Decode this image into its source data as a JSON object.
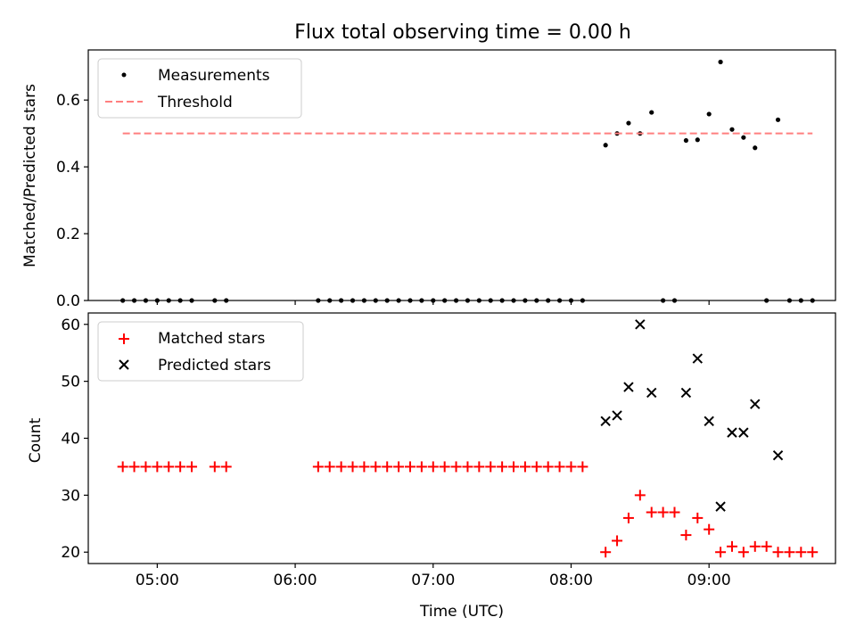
{
  "chart_data": [
    {
      "type": "scatter",
      "title": "Flux total observing time = 0.00 h",
      "xlabel": "",
      "ylabel": "Matched/Predicted stars",
      "xlim": [
        "04:30",
        "09:55"
      ],
      "ylim": [
        0.0,
        0.75
      ],
      "x_ticks": [
        "05:00",
        "06:00",
        "07:00",
        "08:00",
        "09:00"
      ],
      "y_ticks": [
        "0.0",
        "0.2",
        "0.4",
        "0.6"
      ],
      "legend_position": "top-left",
      "grid": false,
      "series": [
        {
          "name": "Measurements",
          "marker": "dot",
          "color": "#000000",
          "points": [
            [
              "04:45",
              0.0
            ],
            [
              "04:50",
              0.0
            ],
            [
              "04:55",
              0.0
            ],
            [
              "05:00",
              0.0
            ],
            [
              "05:05",
              0.0
            ],
            [
              "05:10",
              0.0
            ],
            [
              "05:15",
              0.0
            ],
            [
              "05:25",
              0.0
            ],
            [
              "05:30",
              0.0
            ],
            [
              "06:10",
              0.0
            ],
            [
              "06:15",
              0.0
            ],
            [
              "06:20",
              0.0
            ],
            [
              "06:25",
              0.0
            ],
            [
              "06:30",
              0.0
            ],
            [
              "06:35",
              0.0
            ],
            [
              "06:40",
              0.0
            ],
            [
              "06:45",
              0.0
            ],
            [
              "06:50",
              0.0
            ],
            [
              "06:55",
              0.0
            ],
            [
              "07:00",
              0.0
            ],
            [
              "07:05",
              0.0
            ],
            [
              "07:10",
              0.0
            ],
            [
              "07:15",
              0.0
            ],
            [
              "07:20",
              0.0
            ],
            [
              "07:25",
              0.0
            ],
            [
              "07:30",
              0.0
            ],
            [
              "07:35",
              0.0
            ],
            [
              "07:40",
              0.0
            ],
            [
              "07:45",
              0.0
            ],
            [
              "07:50",
              0.0
            ],
            [
              "07:55",
              0.0
            ],
            [
              "08:00",
              0.0
            ],
            [
              "08:05",
              0.0
            ],
            [
              "08:15",
              0.465
            ],
            [
              "08:20",
              0.5
            ],
            [
              "08:25",
              0.531
            ],
            [
              "08:30",
              0.5
            ],
            [
              "08:35",
              0.563
            ],
            [
              "08:40",
              0.0
            ],
            [
              "08:45",
              0.0
            ],
            [
              "08:50",
              0.479
            ],
            [
              "08:55",
              0.481
            ],
            [
              "09:00",
              0.558
            ],
            [
              "09:05",
              0.714
            ],
            [
              "09:10",
              0.512
            ],
            [
              "09:15",
              0.488
            ],
            [
              "09:20",
              0.457
            ],
            [
              "09:25",
              0.0
            ],
            [
              "09:30",
              0.541
            ],
            [
              "09:35",
              0.0
            ],
            [
              "09:40",
              0.0
            ],
            [
              "09:45",
              0.0
            ]
          ]
        },
        {
          "name": "Threshold",
          "style": "dashed-line",
          "color": "#ff7f7f",
          "points": [
            [
              "04:45",
              0.5
            ],
            [
              "09:45",
              0.5
            ]
          ]
        }
      ]
    },
    {
      "type": "scatter",
      "title": "",
      "xlabel": "Time (UTC)",
      "ylabel": "Count",
      "xlim": [
        "04:30",
        "09:55"
      ],
      "ylim": [
        18,
        62
      ],
      "x_ticks": [
        "05:00",
        "06:00",
        "07:00",
        "08:00",
        "09:00"
      ],
      "y_ticks": [
        "20",
        "30",
        "40",
        "50",
        "60"
      ],
      "legend_position": "top-left",
      "grid": false,
      "series": [
        {
          "name": "Matched stars",
          "marker": "plus",
          "color": "#ff0000",
          "points": [
            [
              "04:45",
              35
            ],
            [
              "04:50",
              35
            ],
            [
              "04:55",
              35
            ],
            [
              "05:00",
              35
            ],
            [
              "05:05",
              35
            ],
            [
              "05:10",
              35
            ],
            [
              "05:15",
              35
            ],
            [
              "05:25",
              35
            ],
            [
              "05:30",
              35
            ],
            [
              "06:10",
              35
            ],
            [
              "06:15",
              35
            ],
            [
              "06:20",
              35
            ],
            [
              "06:25",
              35
            ],
            [
              "06:30",
              35
            ],
            [
              "06:35",
              35
            ],
            [
              "06:40",
              35
            ],
            [
              "06:45",
              35
            ],
            [
              "06:50",
              35
            ],
            [
              "06:55",
              35
            ],
            [
              "07:00",
              35
            ],
            [
              "07:05",
              35
            ],
            [
              "07:10",
              35
            ],
            [
              "07:15",
              35
            ],
            [
              "07:20",
              35
            ],
            [
              "07:25",
              35
            ],
            [
              "07:30",
              35
            ],
            [
              "07:35",
              35
            ],
            [
              "07:40",
              35
            ],
            [
              "07:45",
              35
            ],
            [
              "07:50",
              35
            ],
            [
              "07:55",
              35
            ],
            [
              "08:00",
              35
            ],
            [
              "08:05",
              35
            ],
            [
              "08:15",
              20
            ],
            [
              "08:20",
              22
            ],
            [
              "08:25",
              26
            ],
            [
              "08:30",
              30
            ],
            [
              "08:35",
              27
            ],
            [
              "08:40",
              27
            ],
            [
              "08:45",
              27
            ],
            [
              "08:50",
              23
            ],
            [
              "08:55",
              26
            ],
            [
              "09:00",
              24
            ],
            [
              "09:05",
              20
            ],
            [
              "09:10",
              21
            ],
            [
              "09:15",
              20
            ],
            [
              "09:20",
              21
            ],
            [
              "09:25",
              21
            ],
            [
              "09:30",
              20
            ],
            [
              "09:35",
              20
            ],
            [
              "09:40",
              20
            ],
            [
              "09:45",
              20
            ]
          ]
        },
        {
          "name": "Predicted stars",
          "marker": "x",
          "color": "#000000",
          "points": [
            [
              "08:15",
              43
            ],
            [
              "08:20",
              44
            ],
            [
              "08:25",
              49
            ],
            [
              "08:30",
              60
            ],
            [
              "08:35",
              48
            ],
            [
              "08:50",
              48
            ],
            [
              "08:55",
              54
            ],
            [
              "09:00",
              43
            ],
            [
              "09:05",
              28
            ],
            [
              "09:10",
              41
            ],
            [
              "09:15",
              41
            ],
            [
              "09:20",
              46
            ],
            [
              "09:30",
              37
            ]
          ]
        }
      ]
    }
  ]
}
